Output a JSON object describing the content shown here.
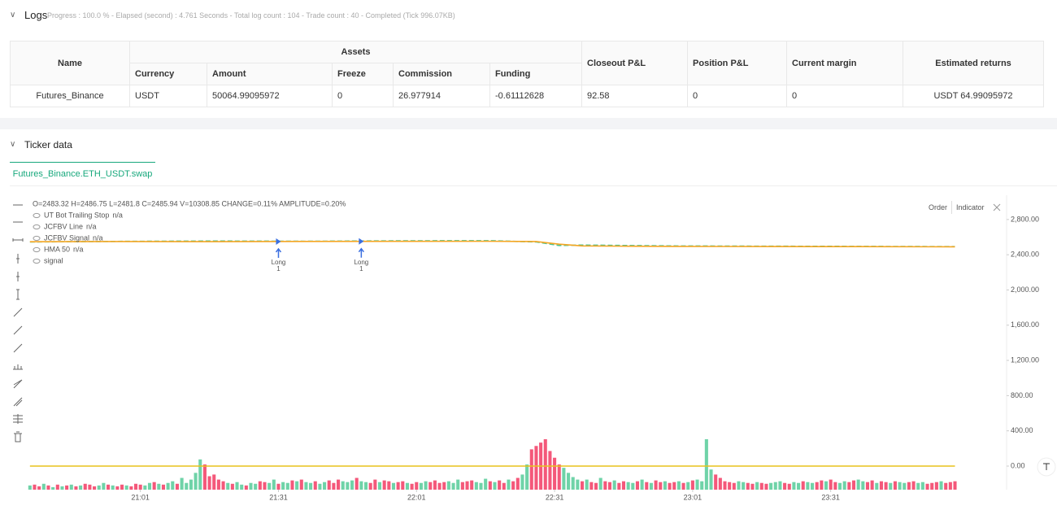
{
  "logs": {
    "title": "Logs",
    "summary": "Progress : 100.0 % - Elapsed (second) : 4.761 Seconds - Total log count : 104 - Trade count : 40 - Completed (Tick 996.07KB)"
  },
  "table": {
    "group_header": "Assets",
    "headers": [
      "Name",
      "Currency",
      "Amount",
      "Freeze",
      "Commission",
      "Funding",
      "Closeout P&L",
      "Position P&L",
      "Current margin",
      "Estimated returns"
    ],
    "rows": [
      [
        "Futures_Binance",
        "USDT",
        "50064.99095972",
        "0",
        "26.977914",
        "-0.61112628",
        "92.58",
        "0",
        "0",
        "USDT 64.99095972"
      ]
    ]
  },
  "ticker": {
    "title": "Ticker data",
    "tab": "Futures_Binance.ETH_USDT.swap",
    "buttons": [
      "Order",
      "Indicator"
    ]
  },
  "chart_data": {
    "type": "line",
    "ohlc": "O=2483.32 H=2486.75 L=2481.8 C=2485.94 V=10308.85 CHANGE=0.11% AMPLITUDE=0.20%",
    "xlim": [
      -0.5,
      202.5
    ],
    "ylim": [
      -268,
      3076
    ],
    "xticks": [
      {
        "value": 24,
        "label": "21:01"
      },
      {
        "value": 54,
        "label": "21:31"
      },
      {
        "value": 84,
        "label": "22:01"
      },
      {
        "value": 114,
        "label": "22:31"
      },
      {
        "value": 144,
        "label": "23:01"
      },
      {
        "value": 174,
        "label": "23:31"
      }
    ],
    "yticks": [
      {
        "value": 2800,
        "label": "2,800.00"
      },
      {
        "value": 2400,
        "label": "2,400.00"
      },
      {
        "value": 2000,
        "label": "2,000.00"
      },
      {
        "value": 1600,
        "label": "1,600.00"
      },
      {
        "value": 1200,
        "label": "1,200.00"
      },
      {
        "value": 800,
        "label": "800.00"
      },
      {
        "value": 400,
        "label": "400.00"
      },
      {
        "value": 0,
        "label": "0.00"
      }
    ],
    "price": {
      "color": "#4fc38f",
      "x": [
        0,
        20,
        40,
        60,
        80,
        100,
        110,
        115,
        120,
        130,
        140,
        160,
        180,
        201
      ],
      "values": [
        2545,
        2552,
        2556,
        2553,
        2558,
        2560,
        2545,
        2505,
        2510,
        2505,
        2500,
        2497,
        2495,
        2492
      ]
    },
    "series": [
      {
        "name": "UT Bot Trailing Stop",
        "value_text": "n/a",
        "color": "#f5a623",
        "x": [
          0,
          20,
          40,
          60,
          80,
          100,
          110,
          115,
          120,
          130,
          140,
          160,
          180,
          201
        ],
        "values": [
          2548,
          2550,
          2549,
          2551,
          2552,
          2553,
          2550,
          2520,
          2500,
          2497,
          2495,
          2493,
          2492,
          2490
        ]
      },
      {
        "name": "JCFBV Line",
        "value_text": "n/a",
        "color": "#3b6fe0"
      },
      {
        "name": "JCFBV Signal",
        "value_text": "n/a",
        "color": "#3b6fe0"
      },
      {
        "name": "HMA 50",
        "value_text": "n/a",
        "color": "#e0245e"
      },
      {
        "name": "signal",
        "color": "#e8c21c",
        "x": [
          0,
          201
        ],
        "values": [
          0,
          0
        ]
      }
    ],
    "signals": [
      {
        "x": 54,
        "value": 2550,
        "label": "Long",
        "count": 1
      },
      {
        "x": 72,
        "value": 2552,
        "label": "Long",
        "count": 1
      }
    ],
    "volume": {
      "up_color": "#6fd3a8",
      "down_color": "#f4587a",
      "directions": "uddudududududdduududduddduududuuduuuuuddddduduuduudduuduududuuduuddduuuduuddudduddudduudddduuuddduuududdudduuddddddduuuududduddudduudududduddudu duuuuddddduuddudduuudduuduuddudduudduuddudduduudduudddu",
      "values": [
        5,
        6,
        4,
        7,
        5,
        3,
        6,
        4,
        5,
        6,
        4,
        5,
        7,
        6,
        4,
        5,
        8,
        6,
        5,
        4,
        6,
        5,
        4,
        7,
        6,
        5,
        8,
        9,
        7,
        6,
        8,
        10,
        7,
        14,
        8,
        12,
        20,
        36,
        30,
        16,
        18,
        12,
        10,
        8,
        7,
        9,
        6,
        5,
        8,
        7,
        10,
        9,
        8,
        12,
        7,
        9,
        8,
        11,
        10,
        12,
        9,
        8,
        10,
        7,
        9,
        11,
        8,
        12,
        10,
        9,
        11,
        14,
        10,
        9,
        8,
        12,
        9,
        11,
        10,
        8,
        9,
        10,
        8,
        7,
        9,
        8,
        10,
        9,
        11,
        8,
        9,
        10,
        8,
        12,
        9,
        10,
        11,
        9,
        8,
        13,
        10,
        9,
        11,
        8,
        12,
        10,
        14,
        18,
        30,
        48,
        52,
        56,
        60,
        46,
        38,
        30,
        26,
        20,
        15,
        12,
        10,
        12,
        9,
        8,
        14,
        10,
        9,
        11,
        8,
        10,
        9,
        8,
        10,
        12,
        9,
        8,
        11,
        9,
        10,
        8,
        9,
        10,
        8,
        9,
        11,
        12,
        10,
        60,
        24,
        18,
        14,
        10,
        9,
        8,
        10,
        9,
        8,
        7,
        9,
        8,
        7,
        8,
        9,
        10,
        8,
        7,
        9,
        8,
        10,
        9,
        8,
        9,
        11,
        10,
        12,
        9,
        8,
        10,
        9,
        11,
        12,
        10,
        9,
        11,
        8,
        10,
        9,
        8,
        10,
        9,
        8,
        9,
        10,
        8,
        9,
        7,
        8,
        9,
        10,
        8,
        9,
        10
      ]
    }
  }
}
